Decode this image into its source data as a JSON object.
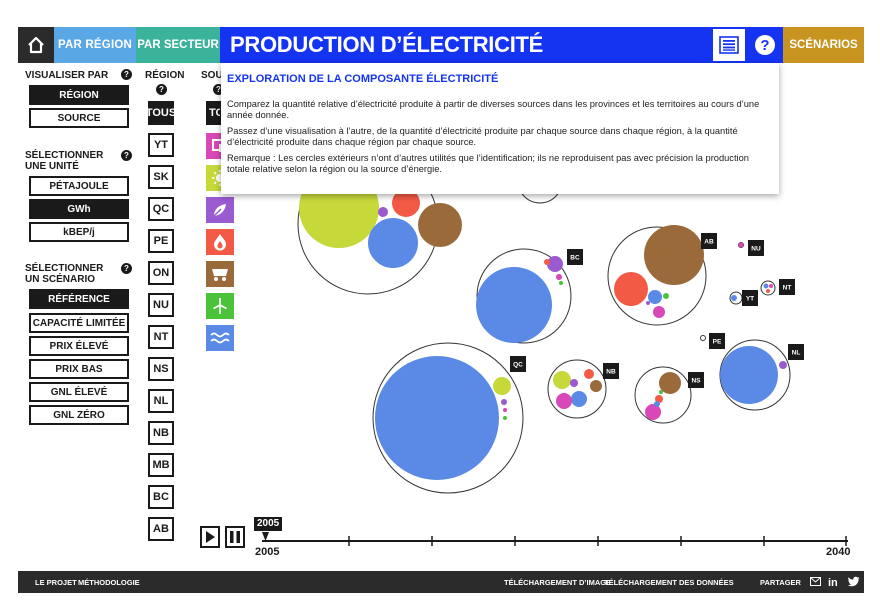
{
  "header": {
    "home_icon": "home-icon",
    "tab_region": "PAR RÉGION",
    "tab_secteur": "PAR SECTEUR",
    "title": "PRODUCTION D’ÉLECTRICITÉ",
    "info_icon": "list-icon",
    "help_icon": "question-icon",
    "scenarios": "SCÉNARIOS",
    "colors": {
      "region": "#5aa7e6",
      "secteur": "#3bb39a",
      "title": "#1534f2",
      "scenarios": "#c6941f"
    }
  },
  "left_panel": {
    "visualize_label": "VISUALISER PAR",
    "visualize_options": [
      "RÉGION",
      "SOURCE"
    ],
    "visualize_selected": "RÉGION",
    "unit_label": "SÉLECTIONNER UNE UNITÉ",
    "unit_options": [
      "PÉTAJOULE",
      "GWh",
      "kBEP/j"
    ],
    "unit_selected": "GWh",
    "scenario_label": "SÉLECTIONNER UN SCÉNARIO",
    "scenario_options": [
      "RÉFÉRENCE",
      "CAPACITÉ LIMITÉE",
      "PRIX ÉLEVÉ",
      "PRIX BAS",
      "GNL ÉLEVÉ",
      "GNL ZÉRO"
    ],
    "scenario_selected": "RÉFÉRENCE"
  },
  "region_column": {
    "label": "RÉGION",
    "items": [
      "TOUS",
      "YT",
      "SK",
      "QC",
      "PE",
      "ON",
      "NU",
      "NT",
      "NS",
      "NL",
      "NB",
      "MB",
      "BC",
      "AB"
    ],
    "selected": "TOUS"
  },
  "source_column": {
    "label": "SOU",
    "first_item": "TOU",
    "icons": [
      {
        "name": "coal-icon",
        "color": "#d848b9"
      },
      {
        "name": "solar-icon",
        "color": "#c6d83a"
      },
      {
        "name": "biomass-icon",
        "color": "#9a5ad0"
      },
      {
        "name": "gas-flame-icon",
        "color": "#f25a45"
      },
      {
        "name": "oil-cart-icon",
        "color": "#9a6a3a"
      },
      {
        "name": "wind-icon",
        "color": "#4ac23a"
      },
      {
        "name": "hydro-icon",
        "color": "#5a8ae6"
      }
    ]
  },
  "popup": {
    "title": "EXPLORATION DE LA COMPOSANTE ÉLECTRICITÉ",
    "p1": "Comparez la quantité relative d’électricité produite à partir de diverses sources dans les provinces et les territoires au cours d’une année donnée.",
    "p2": "Passez d’une visualisation à l’autre, de la quantité d’électricité produite par chaque source dans chaque région, à la quantité d’électricité produite dans chaque région par chaque source.",
    "p3": "Remarque : Les cercles extérieurs n’ont d’autres utilités que l’identification; ils ne reproduisent pas avec précision la production totale relative selon la région ou la source d’énergie."
  },
  "chart_data": {
    "type": "bubble",
    "source_colors": {
      "hydro": "#5a8ae6",
      "gas": "#f25a45",
      "oil": "#9a6a3a",
      "solar": "#c6d83a",
      "biomass": "#9a5ad0",
      "coal": "#d848b9",
      "wind": "#4ac23a"
    },
    "regions": [
      "ON",
      "BC",
      "AB",
      "NU",
      "YT",
      "NT",
      "PE",
      "QC",
      "NB",
      "NS",
      "NL"
    ]
  },
  "timeline": {
    "start": "2005",
    "end": "2040",
    "current": "2005",
    "play_icon": "play-icon",
    "pause_icon": "pause-icon"
  },
  "footer": {
    "projet": "LE PROJET",
    "methodologie": "MÉTHODOLOGIE",
    "dl_image": "TÉLÉCHARGEMENT D’IMAGE",
    "dl_data": "TÉLÉCHARGEMENT DES DONNÉES",
    "partager": "PARTAGER",
    "mail_icon": "mail-icon",
    "linkedin_icon": "linkedin-icon",
    "twitter_icon": "twitter-icon"
  }
}
